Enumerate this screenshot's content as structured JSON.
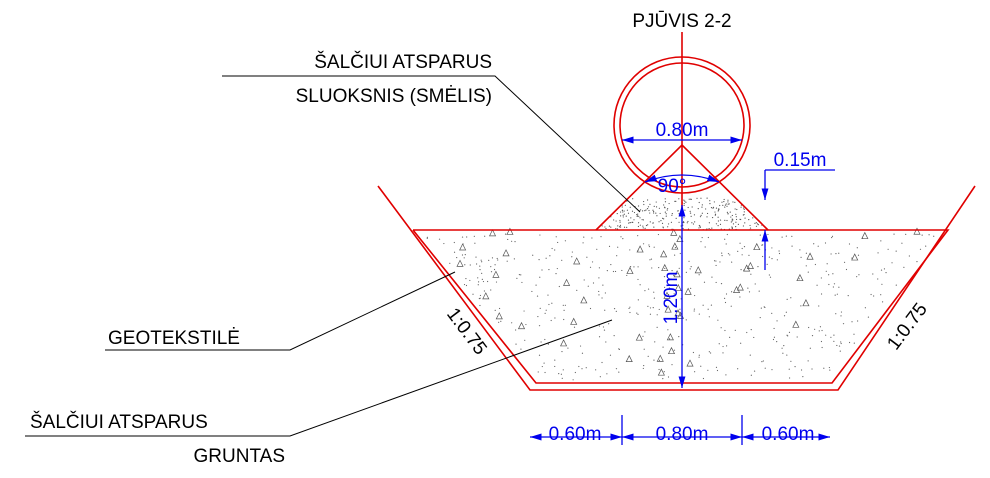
{
  "title": "PJŪVIS 2-2",
  "labels": {
    "sand_1": "ŠALČIUI ATSPARUS",
    "sand_2": "SLUOKSNIS (SMĖLIS)",
    "geotextile": "GEOTEKSTILĖ",
    "soil_1": "ŠALČIUI ATSPARUS",
    "soil_2": "GRUNTAS"
  },
  "dimensions": {
    "pipe_diameter": "0.80m",
    "cover": "0.15m",
    "angle": "90°",
    "depth": "1.20m",
    "slope_left": "1:0.75",
    "slope_right": "1:0.75",
    "bottom_left": "0.60m",
    "bottom_middle": "0.80m",
    "bottom_right": "0.60m"
  }
}
